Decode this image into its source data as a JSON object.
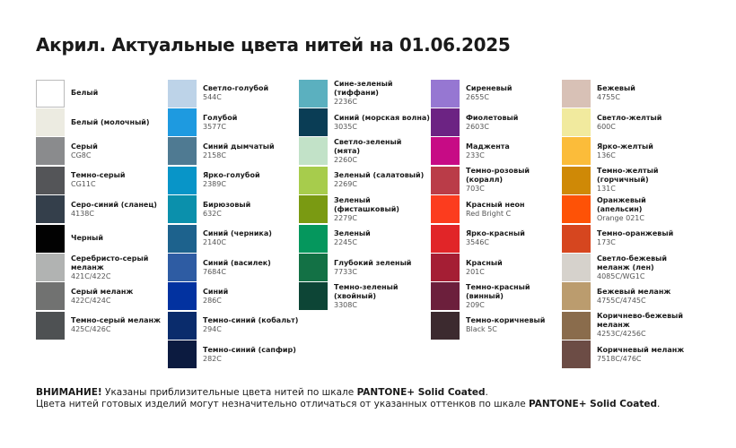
{
  "title": "Акрил. Актуальные цвета нитей на 01.06.2025",
  "columns": [
    [
      {
        "name": "Белый",
        "code": "",
        "color": "#ffffff"
      },
      {
        "name": "Белый (молочный)",
        "code": "",
        "color": "#ecebe1"
      },
      {
        "name": "Серый",
        "code": "CG8C",
        "color": "#8a8b8d"
      },
      {
        "name": "Темно-серый",
        "code": "CG11C",
        "color": "#545558"
      },
      {
        "name": "Серо-синий (сланец)",
        "code": "4138C",
        "color": "#343f4b"
      },
      {
        "name": "Черный",
        "code": "",
        "color": "#020202"
      },
      {
        "name": "Серебристо-серый меланж",
        "code": "421C/422C",
        "color": "#b1b3b2"
      },
      {
        "name": "Серый меланж",
        "code": "422C/424C",
        "color": "#717271"
      },
      {
        "name": "Темно-серый меланж",
        "code": "425C/426C",
        "color": "#4e5153"
      }
    ],
    [
      {
        "name": "Светло-голубой",
        "code": "544C",
        "color": "#bdd3e8"
      },
      {
        "name": "Голубой",
        "code": "3577C",
        "color": "#1e9ae0"
      },
      {
        "name": "Синий дымчатый",
        "code": "2158C",
        "color": "#4f7a92"
      },
      {
        "name": "Ярко-голубой",
        "code": "2389C",
        "color": "#0895c8"
      },
      {
        "name": "Бирюзовый",
        "code": "632C",
        "color": "#0b90ac"
      },
      {
        "name": "Синий (черника)",
        "code": "2140C",
        "color": "#1d628d"
      },
      {
        "name": "Синий (василек)",
        "code": "7684C",
        "color": "#2e5ca3"
      },
      {
        "name": "Синий",
        "code": "286C",
        "color": "#0232a0"
      },
      {
        "name": "Темно-синий (кобальт)",
        "code": "294C",
        "color": "#0a2c6c"
      },
      {
        "name": "Темно-синий (сапфир)",
        "code": "282C",
        "color": "#0c1b40"
      }
    ],
    [
      {
        "name": "Сине-зеленый (тиффани)",
        "code": "2236C",
        "color": "#5bb0bf"
      },
      {
        "name": "Синий (морская волна)",
        "code": "3035C",
        "color": "#0a3d55"
      },
      {
        "name": "Светло-зеленый (мята)",
        "code": "2260C",
        "color": "#c2e2c8"
      },
      {
        "name": "Зеленый (салатовый)",
        "code": "2269C",
        "color": "#a7cc4c"
      },
      {
        "name": "Зеленый (фисташковый)",
        "code": "2279C",
        "color": "#7a9a12"
      },
      {
        "name": "Зеленый",
        "code": "2245C",
        "color": "#05975d"
      },
      {
        "name": "Глубокий зеленый",
        "code": "7733C",
        "color": "#137145"
      },
      {
        "name": "Темно-зеленый (хвойный)",
        "code": "3308C",
        "color": "#0d4536"
      }
    ],
    [
      {
        "name": "Сиреневый",
        "code": "2655C",
        "color": "#9677d2"
      },
      {
        "name": "Фиолетовый",
        "code": "2603C",
        "color": "#6c2383"
      },
      {
        "name": "Маджента",
        "code": "233C",
        "color": "#c70b85"
      },
      {
        "name": "Темно-розовый (коралл)",
        "code": "703C",
        "color": "#ba3c48"
      },
      {
        "name": "Красный неон",
        "code": "Red Bright C",
        "color": "#fc3c1e"
      },
      {
        "name": "Ярко-красный",
        "code": "3546C",
        "color": "#e12528"
      },
      {
        "name": "Красный",
        "code": "201C",
        "color": "#a51e34"
      },
      {
        "name": "Темно-красный (винный)",
        "code": "209C",
        "color": "#6c1f3c"
      },
      {
        "name": "Темно-коричневый",
        "code": "Black 5C",
        "color": "#3c2a2f"
      }
    ],
    [
      {
        "name": "Бежевый",
        "code": "4755C",
        "color": "#d8c1b6"
      },
      {
        "name": "Светло-желтый",
        "code": "600C",
        "color": "#f1ea9e"
      },
      {
        "name": "Ярко-желтый",
        "code": "136C",
        "color": "#fbbc3a"
      },
      {
        "name": "Темно-желтый (горчичный)",
        "code": "131C",
        "color": "#cf8906"
      },
      {
        "name": "Оранжевый (апельсин)",
        "code": "Orange 021C",
        "color": "#fe5206"
      },
      {
        "name": "Темно-оранжевый",
        "code": "173C",
        "color": "#d6461f"
      },
      {
        "name": "Светло-бежевый меланж (лен)",
        "code": "4085C/WG1C",
        "color": "#d6d2cc"
      },
      {
        "name": "Бежевый меланж",
        "code": "4755C/4745C",
        "color": "#bb9c6e"
      },
      {
        "name": "Коричнево-бежевый меланж",
        "code": "4253C/4256C",
        "color": "#8a6c4c"
      },
      {
        "name": "Коричневый меланж",
        "code": "7518C/476C",
        "color": "#6c4c45"
      }
    ]
  ],
  "footer": {
    "warning_label": "ВНИМАНИЕ!",
    "line1_text": " Указаны приблизительные цвета нитей по шкале ",
    "line1_scale": "PANTONE+ Solid Coated",
    "line1_end": ".",
    "line2_text": "Цвета нитей готовых изделий могут незначительно отличаться от указанных оттенков по шкале ",
    "line2_scale": "PANTONE+ Solid Coated",
    "line2_end": "."
  }
}
